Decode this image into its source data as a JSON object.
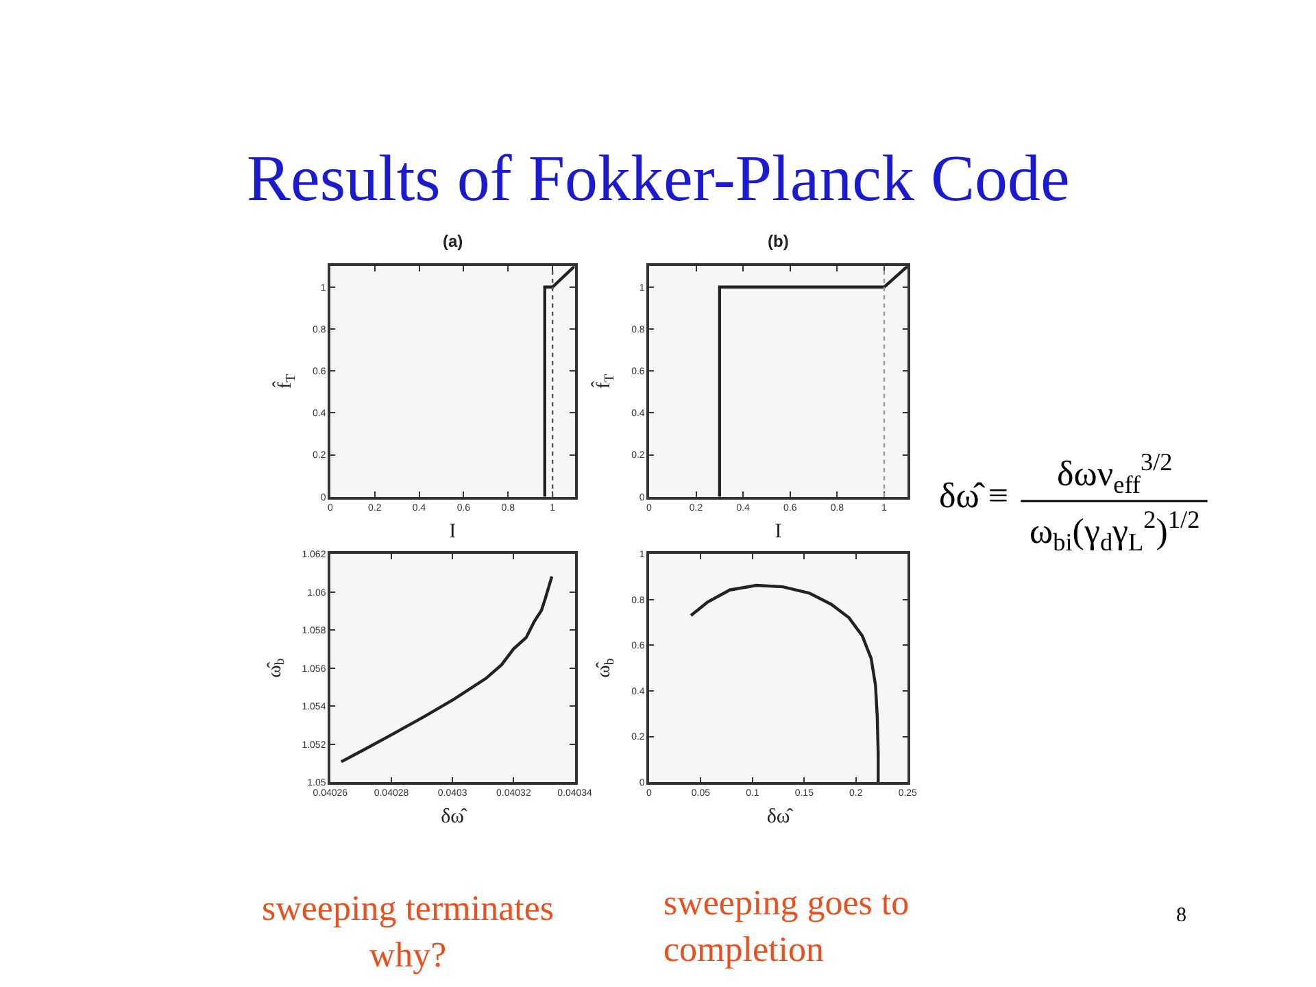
{
  "chart_data": [
    {
      "type": "line",
      "title": "(a)",
      "xlabel": "I",
      "ylabel": "f̂$_{T}$",
      "xlim": [
        0,
        1.1
      ],
      "xticks": [
        0,
        0.2,
        0.4,
        0.6,
        0.8,
        1
      ],
      "ylim": [
        0,
        1.1
      ],
      "yticks": [
        0,
        0.2,
        0.4,
        0.6,
        0.8,
        1
      ],
      "grid": false,
      "series": [
        {
          "color": "#222222",
          "x": [
            0.965,
            0.965,
            1.0,
            1.1
          ],
          "values": [
            0,
            1.0,
            1.0,
            1.1
          ]
        }
      ],
      "ref_lines": [
        {
          "axis": "x",
          "value": 1,
          "color": "#555555",
          "line_style": "dotted"
        }
      ]
    },
    {
      "type": "line",
      "title": "(b)",
      "xlabel": "I",
      "ylabel": "f̂$_{T}$",
      "xlim": [
        0,
        1.1
      ],
      "xticks": [
        0,
        0.2,
        0.4,
        0.6,
        0.8,
        1
      ],
      "ylim": [
        0,
        1.1
      ],
      "yticks": [
        0,
        0.2,
        0.4,
        0.6,
        0.8,
        1
      ],
      "grid": false,
      "series": [
        {
          "color": "#222222",
          "x": [
            0.3,
            0.3,
            1.0,
            1.1
          ],
          "values": [
            0,
            1.0,
            1.0,
            1.1
          ]
        }
      ],
      "ref_lines": [
        {
          "axis": "x",
          "value": 1,
          "color": "#999999",
          "line_style": "dotted"
        }
      ]
    },
    {
      "type": "line",
      "xlabel": "δω̂",
      "ylabel": "ω̂$_{b}$",
      "xlim": [
        0.04026,
        0.04034
      ],
      "xticks": [
        0.04026,
        0.04028,
        0.0403,
        0.04032,
        0.04034
      ],
      "ylim": [
        1.05,
        1.062
      ],
      "yticks": [
        1.05,
        1.052,
        1.054,
        1.056,
        1.058,
        1.06,
        1.062
      ],
      "grid": false,
      "series": [
        {
          "color": "#222222",
          "x": [
            0.0402636,
            0.0402719,
            0.0402806,
            0.0402907,
            0.0403001,
            0.040311,
            0.0403161,
            0.04032,
            0.0403241,
            0.0403267,
            0.0403291,
            0.0403303,
            0.0403325
          ],
          "values": [
            1.05107,
            1.05178,
            1.05254,
            1.05344,
            1.05432,
            1.05546,
            1.05618,
            1.05701,
            1.0576,
            1.05843,
            1.05903,
            1.05962,
            1.06081
          ]
        }
      ]
    },
    {
      "type": "line",
      "xlabel": "δω̂",
      "ylabel": "ω̂$_{b}$",
      "xlim": [
        0,
        0.25
      ],
      "xticks": [
        0,
        0.05,
        0.1,
        0.15,
        0.2,
        0.25
      ],
      "ylim": [
        0,
        1
      ],
      "yticks": [
        0,
        0.2,
        0.4,
        0.6,
        0.8,
        1
      ],
      "grid": false,
      "series": [
        {
          "color": "#222222",
          "x": [
            0.0405,
            0.0567,
            0.0781,
            0.1037,
            0.1293,
            0.1549,
            0.1762,
            0.1933,
            0.2061,
            0.2147,
            0.2189,
            0.2206,
            0.2215,
            0.2215
          ],
          "values": [
            0.73,
            0.789,
            0.842,
            0.862,
            0.856,
            0.828,
            0.779,
            0.72,
            0.641,
            0.542,
            0.424,
            0.286,
            0.128,
            0
          ]
        }
      ]
    },
    {
      "type": "other",
      "title": "Results of Fokker-Planck Code",
      "annotations": [
        "δω̂ ≡",
        "δων$_{eff}$$^{3/2}$",
        "ω$_{bi}$(γ$_{d}$γ$_{L}$$^{2}$)$^{1/2}$",
        "sweeping terminates\nwhy?",
        "sweeping goes to\ncompletion",
        "8"
      ]
    }
  ]
}
